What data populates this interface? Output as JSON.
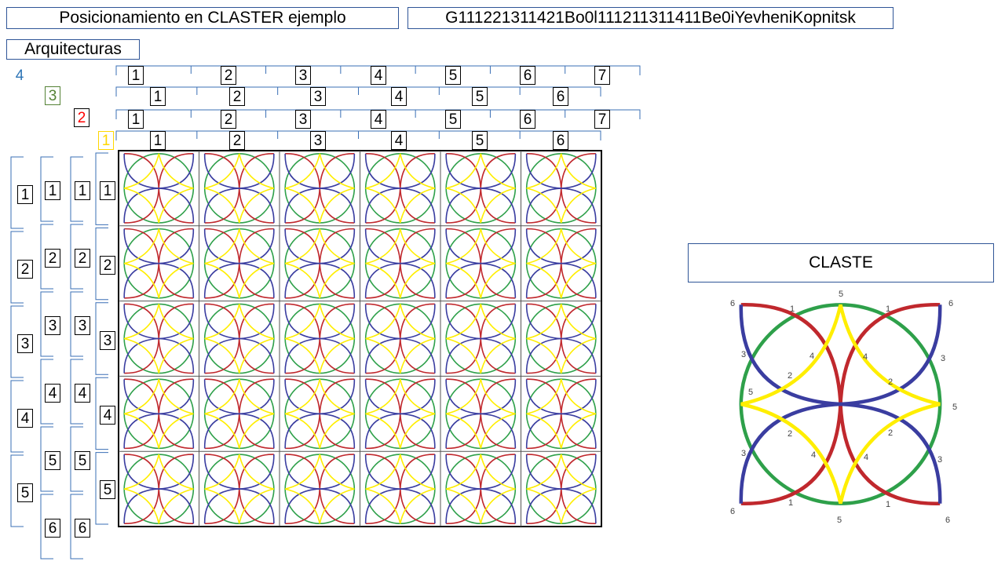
{
  "header": {
    "title": "Posicionamiento en CLASTER ejemplo",
    "code": "G111221311421Bo0l111211311411Be0iYevheniKopnitsk"
  },
  "architectures_label": "Arquitecturas",
  "arch_levels": [
    {
      "id": "4",
      "color": "#2e75b6"
    },
    {
      "id": "3",
      "color": "#548235"
    },
    {
      "id": "2",
      "color": "#ff0000"
    },
    {
      "id": "1",
      "color": "#ffd700"
    }
  ],
  "top_rows": [
    {
      "level": "4",
      "labels": [
        "1",
        "2",
        "3",
        "4",
        "5",
        "6",
        "7"
      ]
    },
    {
      "level": "3",
      "labels": [
        "1",
        "2",
        "3",
        "4",
        "5",
        "6"
      ]
    },
    {
      "level": "2",
      "labels": [
        "1",
        "2",
        "3",
        "4",
        "5",
        "6",
        "7"
      ]
    },
    {
      "level": "1",
      "labels": [
        "1",
        "2",
        "3",
        "4",
        "5",
        "6"
      ]
    }
  ],
  "left_cols": [
    {
      "level": "4",
      "labels": [
        "1",
        "2",
        "3",
        "4",
        "5"
      ]
    },
    {
      "level": "3",
      "labels": [
        "1",
        "2",
        "3",
        "4",
        "5",
        "6"
      ]
    },
    {
      "level": "2",
      "labels": [
        "1",
        "2",
        "3",
        "4",
        "5",
        "6"
      ]
    },
    {
      "level": "1",
      "labels": [
        "1",
        "2",
        "3",
        "4",
        "5"
      ]
    }
  ],
  "grid": {
    "columns": 6,
    "rows": 5
  },
  "pattern_colors": {
    "red": "#c0282d",
    "blue": "#3a3da0",
    "green": "#2ea04a",
    "yellow": "#ffee00"
  },
  "claste": {
    "title": "CLASTE",
    "labels": {
      "six": "6",
      "one": "1",
      "five": "5",
      "four": "4",
      "three": "3",
      "two": "2"
    }
  }
}
